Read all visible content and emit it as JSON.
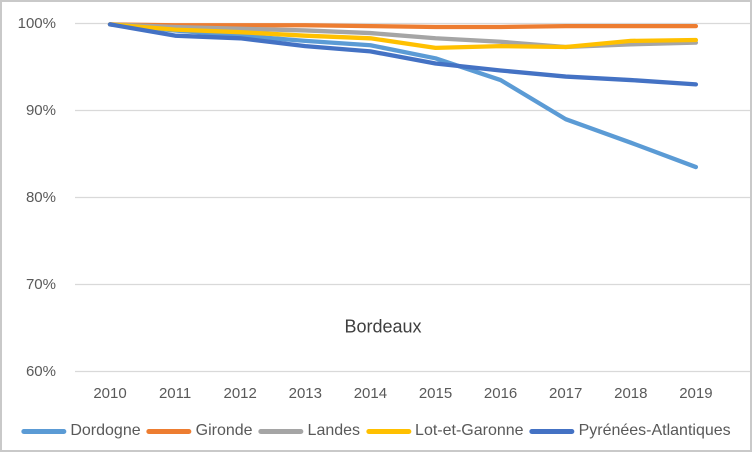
{
  "chart_data": {
    "type": "line",
    "title": "Bordeaux",
    "xlabel": "",
    "ylabel": "",
    "categories": [
      "2010",
      "2011",
      "2012",
      "2013",
      "2014",
      "2015",
      "2016",
      "2017",
      "2018",
      "2019"
    ],
    "series": [
      {
        "name": "Dordogne",
        "color": "#5B9BD5",
        "values": [
          99.9,
          99.2,
          98.6,
          98.0,
          97.5,
          96.0,
          93.5,
          89.0,
          86.3,
          83.5
        ]
      },
      {
        "name": "Gironde",
        "color": "#ED7D31",
        "values": [
          99.9,
          99.8,
          99.8,
          99.8,
          99.7,
          99.6,
          99.6,
          99.7,
          99.7,
          99.7
        ]
      },
      {
        "name": "Landes",
        "color": "#A5A5A5",
        "values": [
          99.9,
          99.6,
          99.4,
          99.2,
          98.9,
          98.3,
          97.9,
          97.3,
          97.6,
          97.8
        ]
      },
      {
        "name": "Lot-et-Garonne",
        "color": "#FFC000",
        "values": [
          99.9,
          99.3,
          99.0,
          98.6,
          98.3,
          97.2,
          97.4,
          97.3,
          98.0,
          98.1
        ]
      },
      {
        "name": "Pyrénées-Atlantiques",
        "color": "#4472C4",
        "values": [
          99.9,
          98.6,
          98.3,
          97.4,
          96.8,
          95.4,
          94.6,
          93.9,
          93.5,
          93.0
        ]
      }
    ],
    "yticks": [
      {
        "label": "100%",
        "value": 100
      },
      {
        "label": "90%",
        "value": 90
      },
      {
        "label": "80%",
        "value": 80
      },
      {
        "label": "70%",
        "value": 70
      },
      {
        "label": "60%",
        "value": 60
      }
    ],
    "ylim": [
      60,
      100
    ],
    "grid": true,
    "legend_position": "bottom",
    "gridline_color": "#D9D9D9"
  }
}
